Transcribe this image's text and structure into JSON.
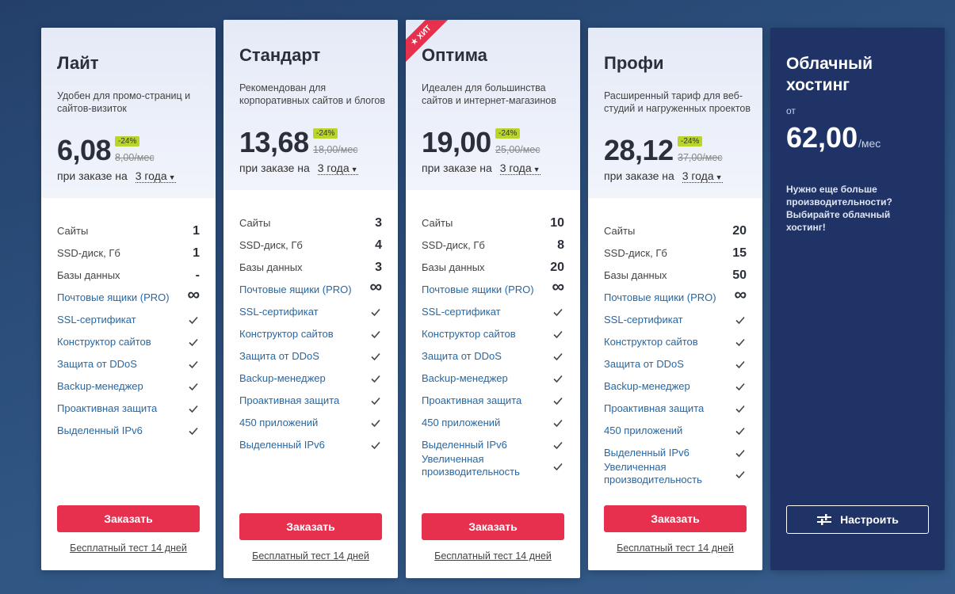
{
  "plans": [
    {
      "name": "Лайт",
      "description": "Удобен для промо-страниц и сайтов-визиток",
      "price": "6,08",
      "discount": "-24%",
      "old_price": "8,00/мес",
      "period_label": "при заказе на",
      "period_value": "3 года",
      "features": [
        {
          "label": "Сайты",
          "value": "1"
        },
        {
          "label": "SSD-диск, Гб",
          "value": "1"
        },
        {
          "label": "Базы данных",
          "value": "-"
        },
        {
          "label": "Почтовые ящики (PRO)",
          "value": "∞"
        },
        {
          "label": "SSL-сертификат",
          "value": "check"
        },
        {
          "label": "Конструктор сайтов",
          "value": "check"
        },
        {
          "label": "Защита от DDoS",
          "value": "check"
        },
        {
          "label": "Backup-менеджер",
          "value": "check"
        },
        {
          "label": "Проактивная защита",
          "value": "check"
        },
        {
          "label": "Выделенный IPv6",
          "value": "check"
        }
      ],
      "order_label": "Заказать",
      "trial_label": "Бесплатный тест 14 дней"
    },
    {
      "name": "Стандарт",
      "description": "Рекомендован для корпоративных сайтов и блогов",
      "price": "13,68",
      "discount": "-24%",
      "old_price": "18,00/мес",
      "period_label": "при заказе на",
      "period_value": "3 года",
      "features": [
        {
          "label": "Сайты",
          "value": "3"
        },
        {
          "label": "SSD-диск, Гб",
          "value": "4"
        },
        {
          "label": "Базы данных",
          "value": "3"
        },
        {
          "label": "Почтовые ящики (PRO)",
          "value": "∞"
        },
        {
          "label": "SSL-сертификат",
          "value": "check"
        },
        {
          "label": "Конструктор сайтов",
          "value": "check"
        },
        {
          "label": "Защита от DDoS",
          "value": "check"
        },
        {
          "label": "Backup-менеджер",
          "value": "check"
        },
        {
          "label": "Проактивная защита",
          "value": "check"
        },
        {
          "label": "450 приложений",
          "value": "check"
        },
        {
          "label": "Выделенный IPv6",
          "value": "check"
        }
      ],
      "order_label": "Заказать",
      "trial_label": "Бесплатный тест 14 дней"
    },
    {
      "name": "Оптима",
      "badge": "ХИТ",
      "description": "Идеален для большинства сайтов и интернет-магазинов",
      "price": "19,00",
      "discount": "-24%",
      "old_price": "25,00/мес",
      "period_label": "при заказе на",
      "period_value": "3 года",
      "features": [
        {
          "label": "Сайты",
          "value": "10"
        },
        {
          "label": "SSD-диск, Гб",
          "value": "8"
        },
        {
          "label": "Базы данных",
          "value": "20"
        },
        {
          "label": "Почтовые ящики (PRO)",
          "value": "∞"
        },
        {
          "label": "SSL-сертификат",
          "value": "check"
        },
        {
          "label": "Конструктор сайтов",
          "value": "check"
        },
        {
          "label": "Защита от DDoS",
          "value": "check"
        },
        {
          "label": "Backup-менеджер",
          "value": "check"
        },
        {
          "label": "Проактивная защита",
          "value": "check"
        },
        {
          "label": "450 приложений",
          "value": "check"
        },
        {
          "label": "Выделенный IPv6",
          "value": "check"
        },
        {
          "label": "Увеличенная производительность",
          "value": "check"
        }
      ],
      "order_label": "Заказать",
      "trial_label": "Бесплатный тест 14 дней"
    },
    {
      "name": "Профи",
      "description": "Расширенный тариф для веб-студий и нагруженных проектов",
      "price": "28,12",
      "discount": "-24%",
      "old_price": "37,00/мес",
      "period_label": "при заказе на",
      "period_value": "3 года",
      "features": [
        {
          "label": "Сайты",
          "value": "20"
        },
        {
          "label": "SSD-диск, Гб",
          "value": "15"
        },
        {
          "label": "Базы данных",
          "value": "50"
        },
        {
          "label": "Почтовые ящики (PRO)",
          "value": "∞"
        },
        {
          "label": "SSL-сертификат",
          "value": "check"
        },
        {
          "label": "Конструктор сайтов",
          "value": "check"
        },
        {
          "label": "Защита от DDoS",
          "value": "check"
        },
        {
          "label": "Backup-менеджер",
          "value": "check"
        },
        {
          "label": "Проактивная защита",
          "value": "check"
        },
        {
          "label": "450 приложений",
          "value": "check"
        },
        {
          "label": "Выделенный IPv6",
          "value": "check"
        },
        {
          "label": "Увеличенная производительность",
          "value": "check"
        }
      ],
      "order_label": "Заказать",
      "trial_label": "Бесплатный тест 14 дней"
    }
  ],
  "cloud": {
    "title": "Облачный хостинг",
    "from_label": "от",
    "price": "62,00",
    "period": "/мес",
    "note": "Нужно еще больше производительности? Выбирайте облачный хостинг!",
    "configure_label": "Настроить",
    "configure_icon": "sliders-icon"
  },
  "colors": {
    "accent_red": "#e6304d",
    "discount_green": "#b9d42a",
    "link_blue": "#2668a6",
    "cloud_bg": "#1f3366"
  }
}
